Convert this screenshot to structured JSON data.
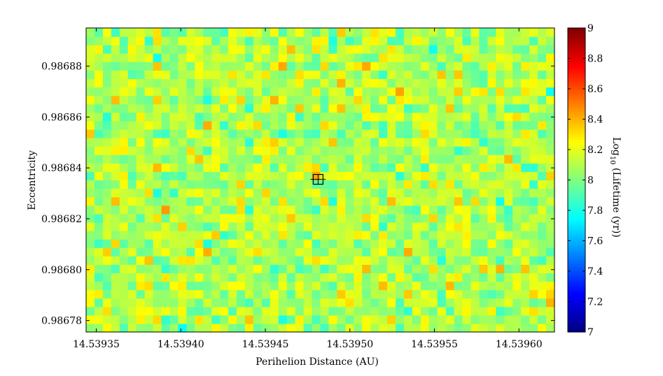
{
  "chart_data": {
    "type": "heatmap",
    "xlabel": "Perihelion Distance (AU)",
    "ylabel": "Eccentricity",
    "colorbar_label": {
      "prefix": "Log",
      "subscript": "10",
      "suffix": " (Lifetime (yr))"
    },
    "xlim": [
      14.539344,
      14.539621
    ],
    "ylim": [
      0.9867755,
      0.986895
    ],
    "x_ticks": [
      14.53935,
      14.5394,
      14.53945,
      14.5395,
      14.53955,
      14.5396
    ],
    "x_tick_labels": [
      "14.53935",
      "14.53940",
      "14.53945",
      "14.53950",
      "14.53955",
      "14.53960"
    ],
    "y_ticks": [
      0.98678,
      0.9868,
      0.98682,
      0.98684,
      0.98686,
      0.98688
    ],
    "y_tick_labels": [
      "0.98678",
      "0.98680",
      "0.98682",
      "0.98684",
      "0.98686",
      "0.98688"
    ],
    "colorbar_range": [
      7,
      9
    ],
    "colorbar_ticks": [
      7,
      7.2,
      7.4,
      7.6,
      7.8,
      8,
      8.2,
      8.4,
      8.6,
      8.8,
      9
    ],
    "colorbar_tick_labels": [
      "7",
      "7.2",
      "7.4",
      "7.6",
      "7.8",
      "8",
      "8.2",
      "8.4",
      "8.6",
      "8.8",
      "9"
    ],
    "colormap": "jet",
    "grid": {
      "columns": 56,
      "rows": 36,
      "typical_value": 8.05,
      "value_spread": [
        7.75,
        8.45
      ],
      "hot_cells": [
        {
          "x": 14.5393912,
          "y": 0.9868231,
          "value": 8.45
        },
        {
          "x": 14.5394562,
          "y": 0.9868657,
          "value": 8.4
        },
        {
          "x": 14.5395112,
          "y": 0.986879,
          "value": 8.42
        },
        {
          "x": 14.5395912,
          "y": 0.9868018,
          "value": 8.4
        },
        {
          "x": 14.5394812,
          "y": 0.9868365,
          "value": 8.42
        },
        {
          "x": 14.5393612,
          "y": 0.9868657,
          "value": 8.38
        },
        {
          "x": 14.5395762,
          "y": 0.986895,
          "value": 8.38
        },
        {
          "x": 14.5396162,
          "y": 0.9867858,
          "value": 8.4
        }
      ],
      "cool_cells": [
        {
          "x": 14.5393862,
          "y": 0.9868843,
          "value": 7.78
        },
        {
          "x": 14.5394012,
          "y": 0.9867778,
          "value": 7.76
        },
        {
          "x": 14.5394612,
          "y": 0.9867805,
          "value": 7.8
        }
      ]
    },
    "nominal_orbit": {
      "q": 14.5394812,
      "e": 0.9868355,
      "q_error": 4.5e-06,
      "e_error": 2e-06
    }
  }
}
